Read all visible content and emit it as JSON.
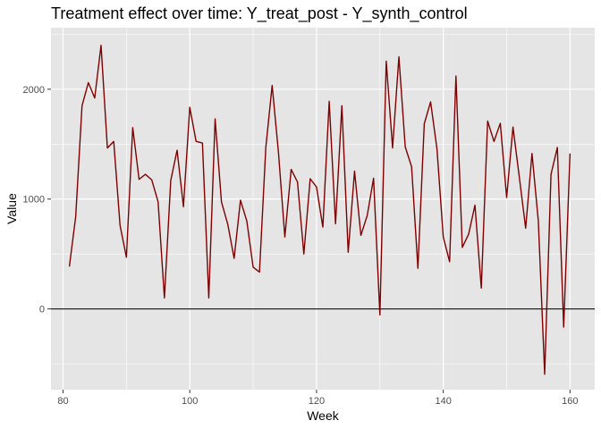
{
  "chart_data": {
    "type": "line",
    "title": "Treatment effect over time: Y_treat_post - Y_synth_control",
    "xlabel": "Week",
    "ylabel": "Value",
    "xlim": [
      78.1,
      163.9
    ],
    "ylim": [
      -735,
      2560
    ],
    "x_ticks": [
      80,
      100,
      120,
      140,
      160
    ],
    "y_ticks": [
      0,
      1000,
      2000
    ],
    "x_tick_labels": [
      "80",
      "100",
      "120",
      "140",
      "160"
    ],
    "y_tick_labels": [
      "0",
      "1000",
      "2000"
    ],
    "hline": 0,
    "colors": {
      "line": "#7f0000",
      "hline": "#222222",
      "panel": "#e5e5e5",
      "grid": "#ffffff"
    },
    "grid": true,
    "series": [
      {
        "x": [
          81,
          82,
          83,
          84,
          85,
          86,
          87,
          88,
          89,
          90,
          91,
          92,
          93,
          94,
          95,
          96,
          97,
          98,
          99,
          100,
          101,
          102,
          103,
          104,
          105,
          106,
          107,
          108,
          109,
          110,
          111,
          112,
          113,
          114,
          115,
          116,
          117,
          118,
          119,
          120,
          121,
          122,
          123,
          124,
          125,
          126,
          127,
          128,
          129,
          130,
          131,
          132,
          133,
          134,
          135,
          136,
          137,
          138,
          139,
          140,
          141,
          142,
          143,
          144,
          145,
          146,
          147,
          148,
          149,
          150,
          151,
          152,
          153,
          154,
          155,
          156,
          157,
          158,
          159,
          160
        ],
        "values": [
          385,
          840,
          1850,
          2060,
          1920,
          2400,
          1465,
          1525,
          760,
          470,
          1650,
          1180,
          1225,
          1175,
          975,
          100,
          1170,
          1445,
          930,
          1835,
          1525,
          1510,
          100,
          1730,
          975,
          770,
          460,
          990,
          800,
          380,
          335,
          1470,
          2035,
          1420,
          655,
          1270,
          1155,
          500,
          1185,
          1110,
          745,
          1890,
          775,
          1850,
          515,
          1255,
          670,
          850,
          1190,
          -55,
          2255,
          1465,
          2295,
          1475,
          1295,
          370,
          1685,
          1885,
          1460,
          655,
          430,
          2120,
          560,
          680,
          945,
          190,
          1710,
          1525,
          1690,
          1015,
          1655,
          1200,
          735,
          1415,
          800,
          -595,
          1225,
          1470,
          -165,
          1415
        ]
      }
    ]
  }
}
